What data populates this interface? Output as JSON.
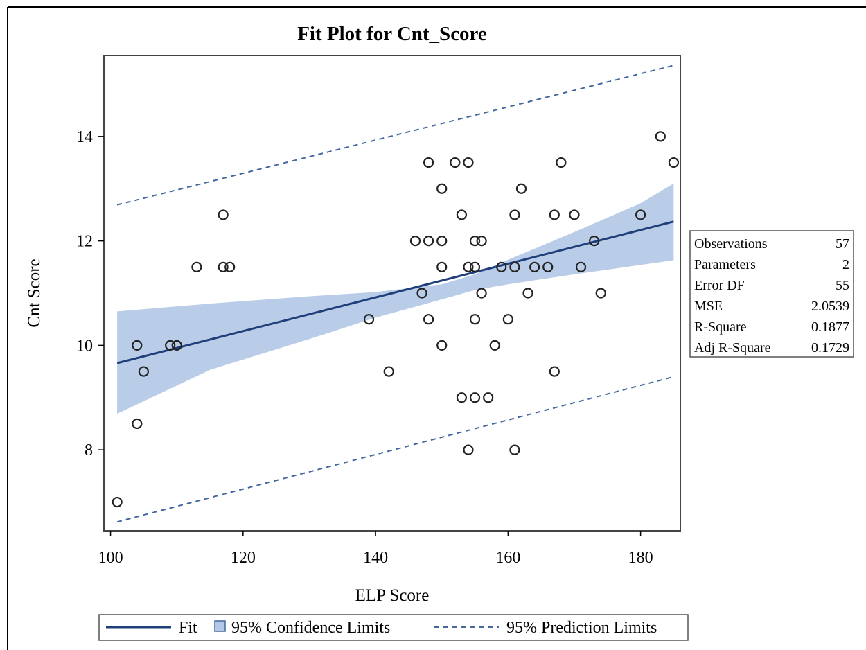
{
  "chart_data": {
    "type": "scatter",
    "title": "Fit Plot for Cnt_Score",
    "xlabel": "ELP Score",
    "ylabel": "Cnt Score",
    "xlim": [
      99,
      186
    ],
    "ylim": [
      6.45,
      15.55
    ],
    "xticks": [
      100,
      120,
      140,
      160,
      180
    ],
    "yticks": [
      8,
      10,
      12,
      14
    ],
    "grid": false,
    "colors": {
      "fit": "#1f3f7a",
      "confidence": "#b3c8e6",
      "prediction": "#44689e",
      "marker": "#222222"
    },
    "points": [
      {
        "x": 101,
        "y": 7
      },
      {
        "x": 104,
        "y": 8.5
      },
      {
        "x": 104,
        "y": 10
      },
      {
        "x": 105,
        "y": 9.5
      },
      {
        "x": 109,
        "y": 10
      },
      {
        "x": 110,
        "y": 10
      },
      {
        "x": 113,
        "y": 11.5
      },
      {
        "x": 117,
        "y": 12.5
      },
      {
        "x": 117,
        "y": 11.5
      },
      {
        "x": 118,
        "y": 11.5
      },
      {
        "x": 139,
        "y": 10.5
      },
      {
        "x": 142,
        "y": 9.5
      },
      {
        "x": 146,
        "y": 12
      },
      {
        "x": 147,
        "y": 11
      },
      {
        "x": 148,
        "y": 13.5
      },
      {
        "x": 148,
        "y": 12
      },
      {
        "x": 148,
        "y": 10.5
      },
      {
        "x": 150,
        "y": 13
      },
      {
        "x": 150,
        "y": 12
      },
      {
        "x": 150,
        "y": 11.5
      },
      {
        "x": 150,
        "y": 10
      },
      {
        "x": 152,
        "y": 13.5
      },
      {
        "x": 153,
        "y": 12.5
      },
      {
        "x": 153,
        "y": 9
      },
      {
        "x": 154,
        "y": 13.5
      },
      {
        "x": 154,
        "y": 11.5
      },
      {
        "x": 154,
        "y": 8
      },
      {
        "x": 155,
        "y": 12
      },
      {
        "x": 155,
        "y": 11.5
      },
      {
        "x": 155,
        "y": 10.5
      },
      {
        "x": 155,
        "y": 9
      },
      {
        "x": 156,
        "y": 12
      },
      {
        "x": 156,
        "y": 11
      },
      {
        "x": 157,
        "y": 9
      },
      {
        "x": 158,
        "y": 10
      },
      {
        "x": 159,
        "y": 11.5
      },
      {
        "x": 160,
        "y": 10.5
      },
      {
        "x": 161,
        "y": 12.5
      },
      {
        "x": 161,
        "y": 11.5
      },
      {
        "x": 161,
        "y": 8
      },
      {
        "x": 162,
        "y": 13
      },
      {
        "x": 163,
        "y": 11
      },
      {
        "x": 164,
        "y": 11.5
      },
      {
        "x": 166,
        "y": 11.5
      },
      {
        "x": 167,
        "y": 12.5
      },
      {
        "x": 167,
        "y": 9.5
      },
      {
        "x": 168,
        "y": 13.5
      },
      {
        "x": 170,
        "y": 12.5
      },
      {
        "x": 171,
        "y": 11.5
      },
      {
        "x": 173,
        "y": 12
      },
      {
        "x": 174,
        "y": 11
      },
      {
        "x": 180,
        "y": 12.5
      },
      {
        "x": 183,
        "y": 14
      },
      {
        "x": 185,
        "y": 13.5
      }
    ],
    "fit_line": {
      "x": [
        101,
        185
      ],
      "y": [
        9.66,
        12.37
      ]
    },
    "confidence_band": {
      "x": [
        101,
        115,
        130,
        140,
        150,
        155,
        160,
        170,
        180,
        185
      ],
      "lower": [
        8.69,
        9.53,
        10.12,
        10.53,
        10.88,
        11.06,
        11.17,
        11.36,
        11.54,
        11.63
      ],
      "upper": [
        10.65,
        10.8,
        10.94,
        11.02,
        11.17,
        11.36,
        11.64,
        12.17,
        12.72,
        13.1
      ]
    },
    "prediction_limits": {
      "x": [
        101,
        185
      ],
      "lower": [
        6.62,
        9.4
      ],
      "upper": [
        12.69,
        15.36
      ]
    },
    "stats": [
      {
        "label": "Observations",
        "value": "57"
      },
      {
        "label": "Parameters",
        "value": "2"
      },
      {
        "label": "Error DF",
        "value": "55"
      },
      {
        "label": "MSE",
        "value": "2.0539"
      },
      {
        "label": "R-Square",
        "value": "0.1877"
      },
      {
        "label": "Adj R-Square",
        "value": "0.1729"
      }
    ],
    "legend": {
      "position": "bottom",
      "entries": [
        {
          "type": "line",
          "label": "Fit"
        },
        {
          "type": "band",
          "label": "95% Confidence Limits"
        },
        {
          "type": "dashed",
          "label": "95% Prediction Limits"
        }
      ]
    }
  }
}
